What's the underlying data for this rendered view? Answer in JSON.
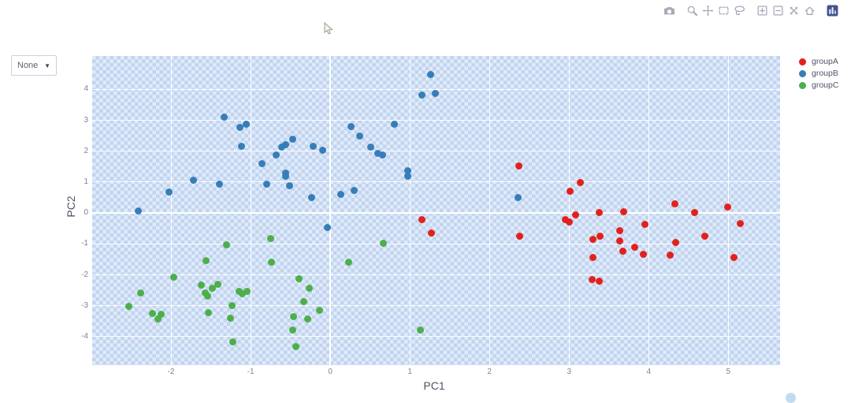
{
  "toolbar": {
    "icons": [
      "camera-snapshot",
      "zoom",
      "pan",
      "box-select",
      "lasso-select",
      "zoom-in",
      "zoom-out",
      "autoscale",
      "reset-axes-home",
      "plotly-logo"
    ]
  },
  "dropdown": {
    "value": "None",
    "caret": "▼"
  },
  "chart_data": {
    "type": "scatter",
    "title": "",
    "xlabel": "PC1",
    "ylabel": "PC2",
    "xlim": [
      -2.99,
      5.65
    ],
    "ylim": [
      -4.92,
      5.08
    ],
    "xticks": [
      -2,
      -1,
      0,
      1,
      2,
      3,
      4,
      5
    ],
    "yticks": [
      -4,
      -3,
      -2,
      -1,
      0,
      1,
      2,
      3,
      4
    ],
    "grid": true,
    "legend_position": "right",
    "plot_bg": "#d9eef9",
    "series": [
      {
        "name": "groupA",
        "color": "#e3211c",
        "points": [
          [
            2.37,
            1.52
          ],
          [
            3.14,
            0.99
          ],
          [
            3.01,
            0.71
          ],
          [
            3.08,
            -0.05
          ],
          [
            2.95,
            -0.21
          ],
          [
            3.0,
            -0.28
          ],
          [
            3.38,
            0.01
          ],
          [
            3.69,
            0.03
          ],
          [
            4.33,
            0.29
          ],
          [
            4.58,
            0.01
          ],
          [
            4.99,
            0.19
          ],
          [
            5.15,
            -0.34
          ],
          [
            3.95,
            -0.36
          ],
          [
            3.64,
            -0.56
          ],
          [
            3.3,
            -0.85
          ],
          [
            3.39,
            -0.75
          ],
          [
            3.64,
            -0.89
          ],
          [
            3.68,
            -1.23
          ],
          [
            3.82,
            -1.1
          ],
          [
            3.93,
            -1.33
          ],
          [
            4.27,
            -1.35
          ],
          [
            4.34,
            -0.96
          ],
          [
            4.7,
            -0.76
          ],
          [
            5.07,
            -1.44
          ],
          [
            3.3,
            -1.45
          ],
          [
            3.29,
            -2.14
          ],
          [
            3.38,
            -2.21
          ],
          [
            1.15,
            -0.21
          ],
          [
            1.27,
            -0.64
          ],
          [
            2.38,
            -0.74
          ]
        ]
      },
      {
        "name": "groupB",
        "color": "#377eb8",
        "points": [
          [
            -1.33,
            3.11
          ],
          [
            -1.13,
            2.78
          ],
          [
            -1.06,
            2.88
          ],
          [
            -1.11,
            2.17
          ],
          [
            -0.61,
            2.14
          ],
          [
            -0.56,
            2.2
          ],
          [
            -0.47,
            2.4
          ],
          [
            -0.68,
            1.89
          ],
          [
            -0.86,
            1.6
          ],
          [
            -0.56,
            1.3
          ],
          [
            -0.56,
            1.19
          ],
          [
            -0.51,
            0.89
          ],
          [
            -0.21,
            2.17
          ],
          [
            -0.1,
            2.02
          ],
          [
            -1.72,
            1.05
          ],
          [
            -1.39,
            0.93
          ],
          [
            -2.03,
            0.68
          ],
          [
            -0.8,
            0.93
          ],
          [
            -0.23,
            0.5
          ],
          [
            -2.41,
            0.07
          ],
          [
            1.26,
            4.47
          ],
          [
            1.15,
            3.83
          ],
          [
            1.32,
            3.86
          ],
          [
            0.81,
            2.87
          ],
          [
            0.26,
            2.8
          ],
          [
            0.37,
            2.48
          ],
          [
            0.51,
            2.13
          ],
          [
            0.6,
            1.93
          ],
          [
            0.66,
            1.87
          ],
          [
            0.97,
            1.36
          ],
          [
            0.97,
            1.18
          ],
          [
            0.13,
            0.61
          ],
          [
            0.3,
            0.73
          ],
          [
            2.36,
            0.5
          ],
          [
            -0.04,
            -0.47
          ]
        ]
      },
      {
        "name": "groupC",
        "color": "#4daf4a",
        "points": [
          [
            -0.75,
            -0.83
          ],
          [
            -1.3,
            -1.04
          ],
          [
            -1.56,
            -1.54
          ],
          [
            -0.74,
            -1.58
          ],
          [
            -1.97,
            -2.07
          ],
          [
            -0.39,
            -2.13
          ],
          [
            -0.26,
            -2.44
          ],
          [
            -1.62,
            -2.34
          ],
          [
            -1.48,
            -2.43
          ],
          [
            -1.41,
            -2.3
          ],
          [
            -1.57,
            -2.58
          ],
          [
            -1.54,
            -2.7
          ],
          [
            -1.14,
            -2.53
          ],
          [
            -1.1,
            -2.61
          ],
          [
            -1.05,
            -2.53
          ],
          [
            -2.38,
            -2.58
          ],
          [
            -2.53,
            -3.02
          ],
          [
            -2.23,
            -3.24
          ],
          [
            -2.12,
            -3.27
          ],
          [
            -2.16,
            -3.44
          ],
          [
            -1.23,
            -2.99
          ],
          [
            -1.53,
            -3.23
          ],
          [
            -1.25,
            -3.39
          ],
          [
            -1.22,
            -4.17
          ],
          [
            -0.33,
            -2.87
          ],
          [
            -0.13,
            -3.14
          ],
          [
            -0.46,
            -3.35
          ],
          [
            -0.28,
            -3.43
          ],
          [
            -0.47,
            -3.78
          ],
          [
            -0.43,
            -4.32
          ],
          [
            0.67,
            -0.97
          ],
          [
            0.23,
            -1.6
          ],
          [
            1.13,
            -3.78
          ]
        ]
      }
    ]
  }
}
